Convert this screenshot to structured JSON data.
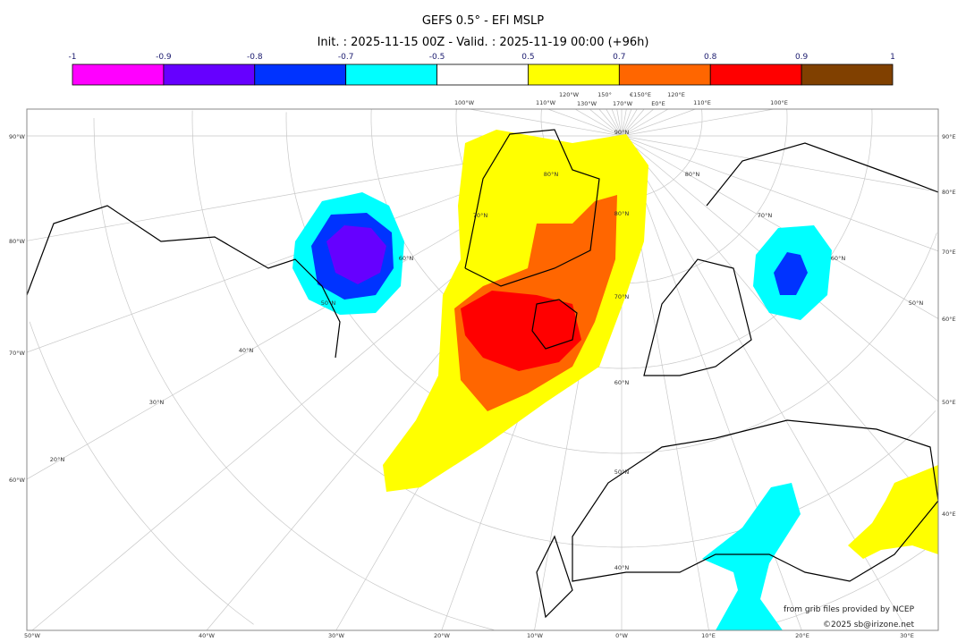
{
  "title": "GEFS 0.5° - EFI MSLP",
  "subtitle": "Init. : 2025-11-15 00Z - Valid. : 2025-11-19 00:00 (+96h)",
  "colorbar": {
    "ticks": [
      "-1",
      "-0.9",
      "-0.8",
      "-0.7",
      "-0.5",
      "0.5",
      "0.7",
      "0.8",
      "0.9",
      "1"
    ],
    "colors": [
      "#ff00ff",
      "#6600ff",
      "#0033ff",
      "#00ffff",
      "#ffffff",
      "#ffff00",
      "#ff6600",
      "#ff0000",
      "#804000"
    ]
  },
  "graticule": {
    "left": [
      "90°W",
      "80°W",
      "70°W",
      "60°W"
    ],
    "right": [
      "90°E",
      "80°E",
      "70°E",
      "60°E",
      "50°E",
      "40°E"
    ],
    "bottom": [
      "50°W",
      "40°W",
      "30°W",
      "20°W",
      "10°W",
      "0°W",
      "10°E",
      "20°E",
      "30°E"
    ],
    "top": [
      "100°W",
      "110°W",
      "120°W",
      "130°W",
      "150°",
      "170°W",
      "€150°E",
      "E0°E",
      "120°E",
      "110°E",
      "100°E"
    ],
    "lat_diag": [
      "90°N",
      "80°N",
      "70°N",
      "60°N",
      "50°N",
      "40°N",
      "30°N",
      "20°N"
    ],
    "lat_center": [
      "80°N",
      "70°N",
      "60°N",
      "50°N",
      "40°N"
    ],
    "lat_right": [
      "80°N",
      "70°N",
      "60°N",
      "50°N"
    ]
  },
  "credits": {
    "source": "from grib files provided by NCEP",
    "copyright": "©2025 sb@irizone.net"
  }
}
